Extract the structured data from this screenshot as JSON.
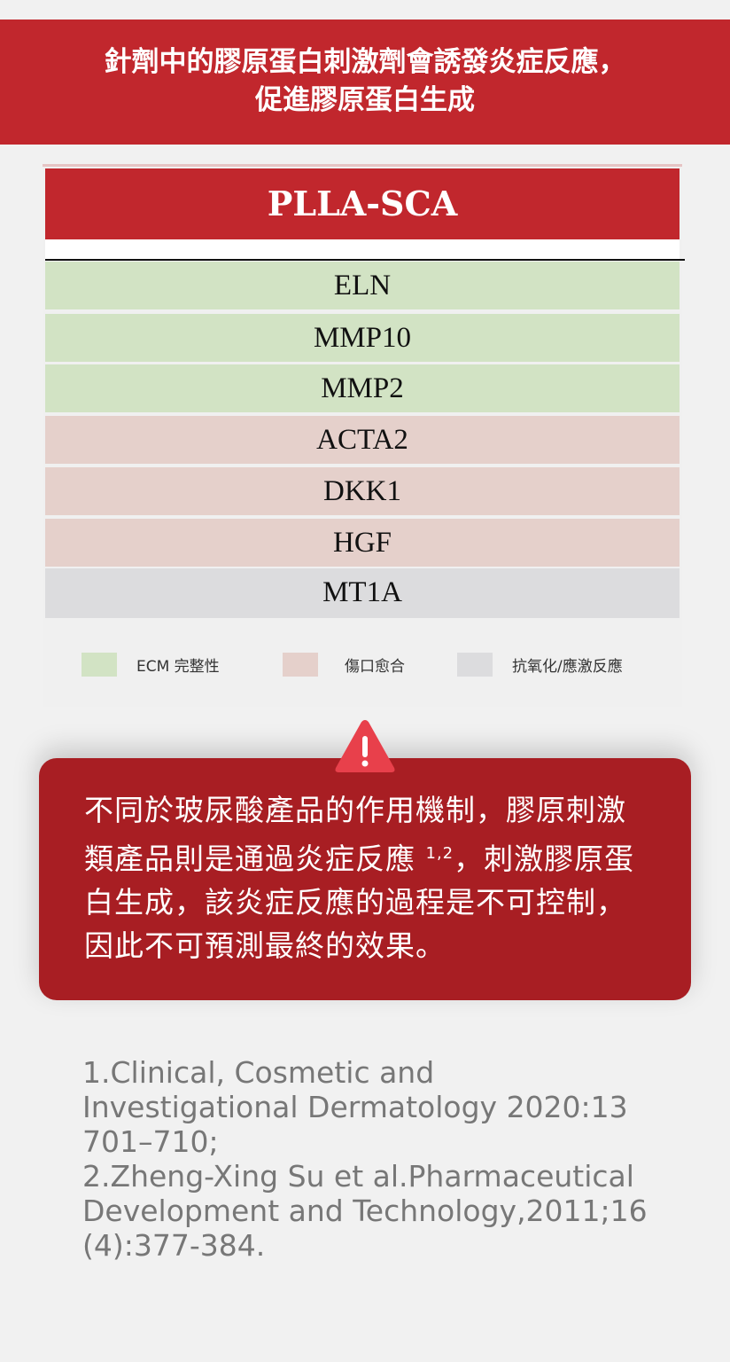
{
  "header": {
    "line1": "針劑中的膠原蛋白刺激劑會誘發炎症反應，",
    "line2": "促進膠原蛋白生成"
  },
  "table": {
    "title": "PLLA-SCA",
    "rows": [
      {
        "label": "ELN",
        "category": "ecm"
      },
      {
        "label": "MMP10",
        "category": "ecm"
      },
      {
        "label": "MMP2",
        "category": "ecm"
      },
      {
        "label": "ACTA2",
        "category": "wound"
      },
      {
        "label": "DKK1",
        "category": "wound"
      },
      {
        "label": "HGF",
        "category": "wound"
      },
      {
        "label": "MT1A",
        "category": "oxidative"
      }
    ],
    "legend": [
      {
        "label": "ECM 完整性",
        "color": "#d2e3c4"
      },
      {
        "label": "傷口愈合",
        "color": "#e5d0cb"
      },
      {
        "label": "抗氧化/應激反應",
        "color": "#dcdcde"
      }
    ]
  },
  "warning": {
    "icon": "warning-triangle-icon",
    "text_a": "不同於玻尿酸產品的作用機制，膠原刺激類產品則是通過炎症反應 ",
    "sup": "1,2",
    "text_b": "，刺激膠原蛋白生成，該炎症反應的過程是不可控制，因此不可預測最終的效果。"
  },
  "references": {
    "ref1": "1.Clinical, Cosmetic and Investigational Dermatology 2020:13 701–710;",
    "ref2": "2.Zheng-Xing Su et al.Pharmaceutical Development and Technology,2011;16 (4):377-384."
  },
  "colors": {
    "brand_red": "#c1272d",
    "warning_red": "#a81e23"
  }
}
